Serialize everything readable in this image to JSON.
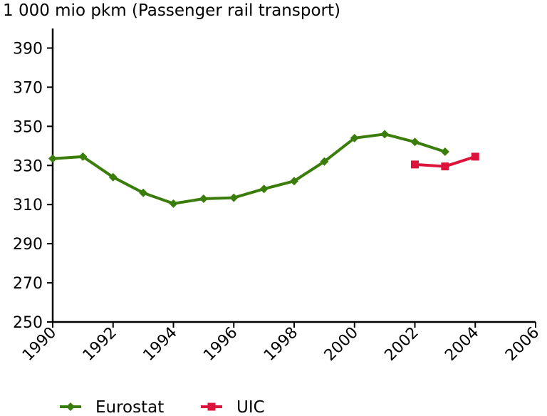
{
  "chart_data": {
    "type": "line",
    "title": "1 000 mio pkm (Passenger rail transport)",
    "xlabel": "",
    "ylabel": "",
    "xlim": [
      1990,
      2006
    ],
    "ylim": [
      250,
      400
    ],
    "x_ticks": [
      1990,
      1992,
      1994,
      1996,
      1998,
      2000,
      2002,
      2004,
      2006
    ],
    "y_ticks": [
      250,
      270,
      290,
      310,
      330,
      350,
      370,
      390
    ],
    "grid": false,
    "legend_position": "bottom-left",
    "series": [
      {
        "name": "Eurostat",
        "color": "#3a7d0a",
        "marker": "diamond",
        "x": [
          1990,
          1991,
          1992,
          1993,
          1994,
          1995,
          1996,
          1997,
          1998,
          1999,
          2000,
          2001,
          2002,
          2003
        ],
        "values": [
          333.5,
          334.5,
          324,
          316,
          310.5,
          313,
          313.5,
          318,
          322,
          332,
          344,
          346,
          342,
          337
        ]
      },
      {
        "name": "UIC",
        "color": "#dc143c",
        "marker": "square",
        "x": [
          2002,
          2003,
          2004
        ],
        "values": [
          330.5,
          329.5,
          334.5
        ]
      }
    ]
  }
}
